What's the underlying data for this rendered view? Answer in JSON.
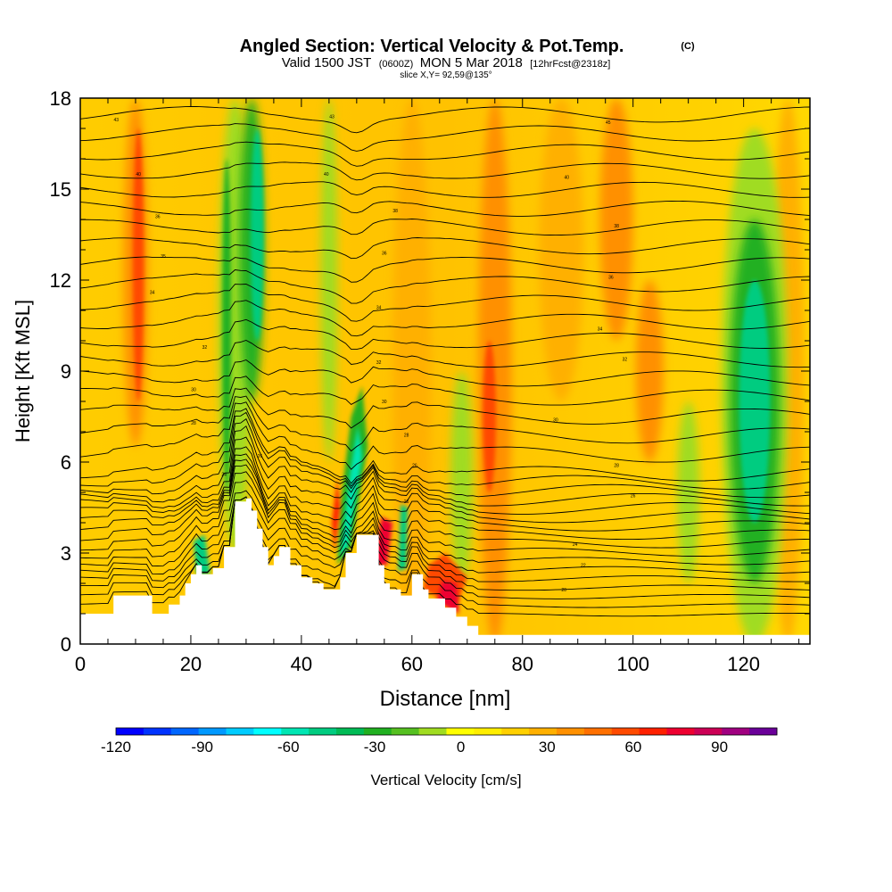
{
  "header": {
    "title_main": "Angled Section: Vertical Velocity & Pot.Temp.",
    "title_tag": "(C)",
    "subtitle_a": "Valid 1500 JST",
    "subtitle_b": "(0600Z)",
    "subtitle_c": "MON 5 Mar 2018",
    "subtitle_d": "[12hrFcst@2318z]",
    "slice_text": "slice X,Y= 92,59@135°"
  },
  "chart_data": {
    "type": "heatmap",
    "title": "Angled Section: Vertical Velocity & Pot.Temp.",
    "xlabel": "Distance [nm]",
    "ylabel": "Height [Kft MSL]",
    "xlim": [
      0,
      132
    ],
    "ylim": [
      0,
      18
    ],
    "x_ticks": [
      0,
      20,
      40,
      60,
      80,
      100,
      120
    ],
    "y_ticks": [
      0,
      3,
      6,
      9,
      12,
      15,
      18
    ],
    "colorbar": {
      "label": "Vertical Velocity [cm/s]",
      "min": -120,
      "max": 110,
      "step": 10,
      "tick_values": [
        -120,
        -90,
        -60,
        -30,
        0,
        30,
        60,
        90
      ],
      "tick_labels": [
        "-120",
        "-90",
        "-60",
        "-30",
        "0",
        "30",
        "60",
        "90"
      ],
      "colors": [
        "#0000ff",
        "#0033ff",
        "#0066ff",
        "#0099ff",
        "#00ccff",
        "#00ffff",
        "#00e6b3",
        "#00cc80",
        "#00bb55",
        "#20b020",
        "#55c020",
        "#a0dc20",
        "#ffff00",
        "#ffee00",
        "#ffd000",
        "#ffb000",
        "#ff9000",
        "#ff7000",
        "#ff4a00",
        "#ff2000",
        "#ee0030",
        "#cc0055",
        "#a00080",
        "#6a0099"
      ]
    },
    "velocity_field_description_values": {
      "updraft_columns_x": [
        10,
        55,
        60,
        67,
        75,
        97,
        103
      ],
      "downdraft_columns_x": [
        27,
        32,
        48,
        58,
        122
      ],
      "downdraft_peak_cms": -70,
      "updraft_peak_cms": 80
    },
    "terrain": {
      "x": [
        0,
        5,
        6,
        12,
        13,
        16,
        18,
        19,
        20,
        21,
        22,
        24,
        26,
        28,
        30,
        31,
        32,
        33,
        34,
        35,
        36,
        37,
        38,
        39,
        40,
        42,
        44,
        46,
        47,
        48,
        50,
        52,
        54,
        55,
        56,
        58,
        60,
        61,
        62,
        63,
        64,
        66,
        68,
        70,
        72,
        132
      ],
      "height_kft": [
        1.0,
        1.0,
        1.6,
        1.6,
        1.0,
        1.3,
        1.6,
        2.0,
        2.3,
        2.6,
        2.3,
        2.5,
        3.2,
        4.7,
        4.8,
        4.4,
        3.8,
        3.2,
        2.6,
        2.9,
        3.2,
        3.2,
        2.6,
        2.6,
        2.2,
        2.0,
        1.8,
        1.8,
        2.2,
        3.0,
        3.6,
        3.6,
        2.6,
        2.0,
        1.8,
        1.6,
        2.3,
        2.3,
        1.8,
        1.5,
        1.5,
        1.2,
        0.9,
        0.6,
        0.3,
        0.3
      ]
    },
    "contour_labels": [
      {
        "x": 6.5,
        "y": 17.3,
        "text": "43"
      },
      {
        "x": 10.5,
        "y": 15.5,
        "text": "40"
      },
      {
        "x": 14,
        "y": 14.1,
        "text": "36"
      },
      {
        "x": 15,
        "y": 12.8,
        "text": "35"
      },
      {
        "x": 13,
        "y": 11.6,
        "text": "34"
      },
      {
        "x": 22.5,
        "y": 9.8,
        "text": "32"
      },
      {
        "x": 20.5,
        "y": 8.4,
        "text": "30"
      },
      {
        "x": 20.5,
        "y": 7.3,
        "text": "28"
      },
      {
        "x": 26,
        "y": 5.6,
        "text": "24"
      },
      {
        "x": 32.5,
        "y": 6.2,
        "text": "26"
      },
      {
        "x": 45.5,
        "y": 17.4,
        "text": "43"
      },
      {
        "x": 44.5,
        "y": 15.5,
        "text": "40"
      },
      {
        "x": 57,
        "y": 14.3,
        "text": "38"
      },
      {
        "x": 55,
        "y": 12.9,
        "text": "36"
      },
      {
        "x": 54,
        "y": 11.1,
        "text": "34"
      },
      {
        "x": 54,
        "y": 9.3,
        "text": "32"
      },
      {
        "x": 55,
        "y": 8.0,
        "text": "30"
      },
      {
        "x": 59,
        "y": 6.9,
        "text": "28"
      },
      {
        "x": 60.5,
        "y": 5.9,
        "text": "26"
      },
      {
        "x": 59,
        "y": 4.7,
        "text": "26"
      },
      {
        "x": 53.5,
        "y": 3.6,
        "text": "24"
      },
      {
        "x": 95.5,
        "y": 17.2,
        "text": "45"
      },
      {
        "x": 88,
        "y": 15.4,
        "text": "40"
      },
      {
        "x": 97,
        "y": 13.8,
        "text": "38"
      },
      {
        "x": 96,
        "y": 12.1,
        "text": "36"
      },
      {
        "x": 94,
        "y": 10.4,
        "text": "34"
      },
      {
        "x": 98.5,
        "y": 9.4,
        "text": "32"
      },
      {
        "x": 86,
        "y": 7.4,
        "text": "30"
      },
      {
        "x": 97,
        "y": 5.9,
        "text": "28"
      },
      {
        "x": 100,
        "y": 4.9,
        "text": "26"
      },
      {
        "x": 89.5,
        "y": 3.3,
        "text": "24"
      },
      {
        "x": 91,
        "y": 2.6,
        "text": "22"
      },
      {
        "x": 87.5,
        "y": 1.8,
        "text": "20"
      }
    ]
  }
}
